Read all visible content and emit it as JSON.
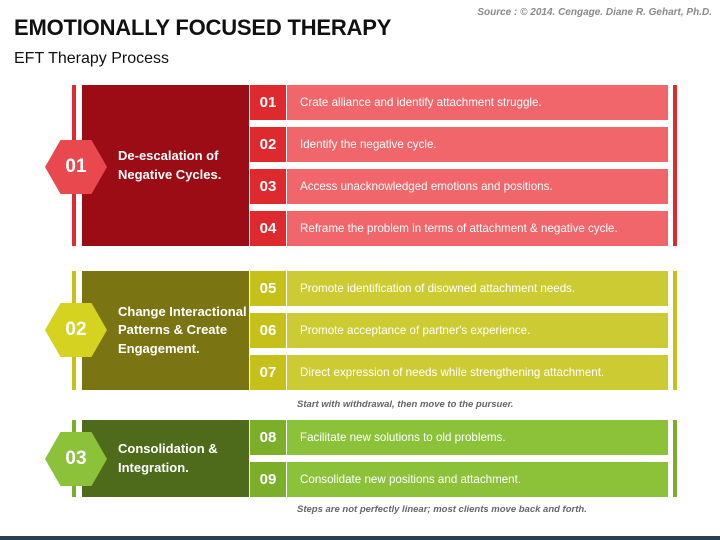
{
  "title": "EMOTIONALLY FOCUSED THERAPY",
  "subtitle": "EFT Therapy Process",
  "source": "Source : © 2014. Cengage. Diane R. Gehart, Ph.D.",
  "colors": {
    "red_dark": "#9b0c14",
    "red_num": "#de2a2f",
    "red_light": "#f1666a",
    "olive_dark": "#7a7512",
    "olive_num": "#c6c11a",
    "olive_light": "#cdcb33",
    "green_dark": "#4e6b1c",
    "green_num": "#7caf29",
    "green_light": "#8cc13a"
  },
  "sections": [
    {
      "number": "01",
      "label": "De-escalation of Negative Cycles.",
      "steps": [
        {
          "num": "01",
          "text": "Crate alliance and identify attachment struggle."
        },
        {
          "num": "02",
          "text": "Identify the negative cycle."
        },
        {
          "num": "03",
          "text": "Access unacknowledged emotions and positions."
        },
        {
          "num": "04",
          "text": "Reframe the problem in terms of attachment & negative cycle."
        }
      ]
    },
    {
      "number": "02",
      "label": "Change Interactional Patterns & Create Engagement.",
      "steps": [
        {
          "num": "05",
          "text": "Promote identification of disowned attachment needs."
        },
        {
          "num": "06",
          "text": "Promote acceptance of partner's experience."
        },
        {
          "num": "07",
          "text": "Direct expression of needs while strengthening attachment."
        }
      ],
      "note": "Start with withdrawal, then move to the pursuer."
    },
    {
      "number": "03",
      "label": "Consolidation & Integration.",
      "steps": [
        {
          "num": "08",
          "text": "Facilitate new solutions to old problems."
        },
        {
          "num": "09",
          "text": "Consolidate new positions and attachment."
        }
      ],
      "note": "Steps are not perfectly linear; most clients move back and forth."
    }
  ]
}
